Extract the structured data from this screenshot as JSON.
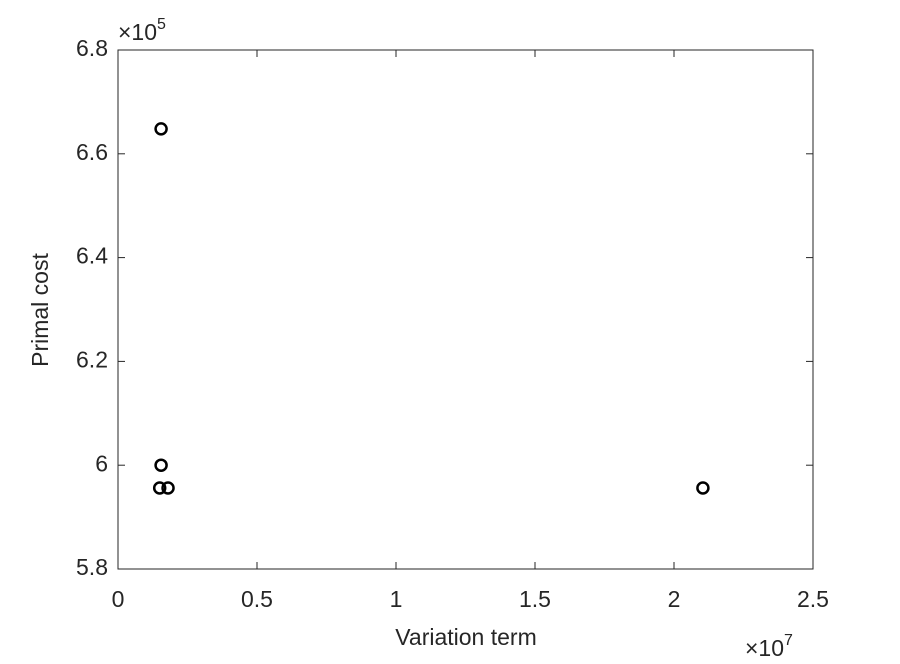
{
  "chart_data": {
    "type": "scatter",
    "x_label": "Variation term",
    "y_label": "Primal cost",
    "x_exponent_label": {
      "base": "×10",
      "exponent": "7"
    },
    "y_exponent_label": {
      "base": "×10",
      "exponent": "5"
    },
    "x": [
      0.155,
      0.155,
      0.15,
      0.18,
      2.104
    ],
    "values": [
      6.648,
      6.0,
      5.956,
      5.956,
      5.956
    ],
    "color": "#000000",
    "xlim": [
      0,
      2.5
    ],
    "xticks": [
      0,
      0.5,
      1,
      1.5,
      2,
      2.5
    ],
    "ylim": [
      5.8,
      6.8
    ],
    "yticks": [
      5.8,
      6,
      6.2,
      6.4,
      6.6,
      6.8
    ],
    "grid": false
  }
}
